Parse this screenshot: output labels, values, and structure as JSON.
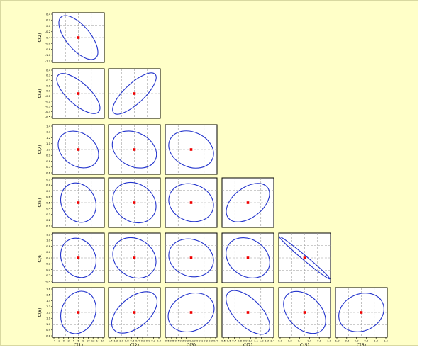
{
  "colors": {
    "background": "#ffffc8",
    "panel": "#ffffff",
    "ellipse": "#2233cc",
    "center": "#ee0000",
    "grid": "#9a9a9a",
    "frame": "#000000"
  },
  "chart_data": {
    "type": "scatter",
    "description_type": "pairwise confidence ellipse matrix (lower triangle)",
    "grid": true,
    "panels": [
      {
        "row": 0,
        "col": 0,
        "xlabel": "",
        "ylabel": "C(2)",
        "center": [
          0.5,
          0.5
        ],
        "rx": 0.54,
        "ry": 0.24,
        "angle": 50,
        "xticks": [],
        "yticks": [
          "0.4",
          "0.2",
          "0.0",
          "-0.2",
          "-0.4",
          "-0.6",
          "-0.8",
          "-1.0",
          "-1.2"
        ]
      },
      {
        "row": 1,
        "col": 0,
        "xlabel": "",
        "ylabel": "C(3)",
        "center": [
          0.5,
          0.5
        ],
        "rx": 0.55,
        "ry": 0.22,
        "angle": 42,
        "xticks": [],
        "yticks": [
          "0.4",
          "0.3",
          "0.2",
          "0.1",
          "0.0",
          "-0.1",
          "-0.2",
          "-0.3",
          "-0.4",
          "-0.5"
        ]
      },
      {
        "row": 1,
        "col": 1,
        "xlabel": "",
        "ylabel": "",
        "center": [
          0.5,
          0.5
        ],
        "rx": 0.57,
        "ry": 0.2,
        "angle": -43,
        "xticks": [],
        "yticks": []
      },
      {
        "row": 2,
        "col": 0,
        "xlabel": "",
        "ylabel": "C(7)",
        "center": [
          0.5,
          0.5
        ],
        "rx": 0.44,
        "ry": 0.33,
        "angle": 35,
        "xticks": [],
        "yticks": [
          "1.4",
          "1.3",
          "1.2",
          "1.1",
          "1.0",
          "0.9",
          "0.8",
          "0.7",
          "0.6"
        ]
      },
      {
        "row": 2,
        "col": 1,
        "xlabel": "",
        "ylabel": "",
        "center": [
          0.5,
          0.5
        ],
        "rx": 0.47,
        "ry": 0.34,
        "angle": 28,
        "xticks": [],
        "yticks": []
      },
      {
        "row": 2,
        "col": 2,
        "xlabel": "",
        "ylabel": "",
        "center": [
          0.5,
          0.5
        ],
        "rx": 0.47,
        "ry": 0.35,
        "angle": 25,
        "xticks": [],
        "yticks": []
      },
      {
        "row": 3,
        "col": 0,
        "xlabel": "",
        "ylabel": "C(5)",
        "center": [
          0.5,
          0.5
        ],
        "rx": 0.41,
        "ry": 0.34,
        "angle": 62,
        "xticks": [],
        "yticks": [
          "0.9",
          "0.8",
          "0.7",
          "0.6",
          "0.5",
          "0.4",
          "0.3",
          "0.2",
          "0.1"
        ]
      },
      {
        "row": 3,
        "col": 1,
        "xlabel": "",
        "ylabel": "",
        "center": [
          0.5,
          0.5
        ],
        "rx": 0.46,
        "ry": 0.38,
        "angle": 35,
        "xticks": [],
        "yticks": []
      },
      {
        "row": 3,
        "col": 2,
        "xlabel": "",
        "ylabel": "",
        "center": [
          0.5,
          0.5
        ],
        "rx": 0.46,
        "ry": 0.37,
        "angle": 20,
        "xticks": [],
        "yticks": []
      },
      {
        "row": 3,
        "col": 3,
        "xlabel": "",
        "ylabel": "",
        "center": [
          0.5,
          0.5
        ],
        "rx": 0.5,
        "ry": 0.3,
        "angle": -38,
        "xticks": [],
        "yticks": []
      },
      {
        "row": 4,
        "col": 0,
        "xlabel": "",
        "ylabel": "C(6)",
        "center": [
          0.5,
          0.5
        ],
        "rx": 0.41,
        "ry": 0.34,
        "angle": 62,
        "xticks": [],
        "yticks": [
          "1.2",
          "1.0",
          "0.8",
          "0.6",
          "0.4",
          "0.2",
          "0.0",
          "-0.2",
          "-0.4"
        ]
      },
      {
        "row": 4,
        "col": 1,
        "xlabel": "",
        "ylabel": "",
        "center": [
          0.5,
          0.5
        ],
        "rx": 0.46,
        "ry": 0.38,
        "angle": 35,
        "xticks": [],
        "yticks": []
      },
      {
        "row": 4,
        "col": 2,
        "xlabel": "",
        "ylabel": "",
        "center": [
          0.5,
          0.5
        ],
        "rx": 0.46,
        "ry": 0.37,
        "angle": 20,
        "xticks": [],
        "yticks": []
      },
      {
        "row": 4,
        "col": 3,
        "xlabel": "",
        "ylabel": "",
        "center": [
          0.5,
          0.5
        ],
        "rx": 0.47,
        "ry": 0.37,
        "angle": 35,
        "xticks": [],
        "yticks": []
      },
      {
        "row": 4,
        "col": 4,
        "xlabel": "",
        "ylabel": "",
        "center": [
          0.5,
          0.5
        ],
        "rx": 0.66,
        "ry": 0.045,
        "angle": 40,
        "xticks": [],
        "yticks": []
      },
      {
        "row": 5,
        "col": 0,
        "xlabel": "C(1)",
        "ylabel": "C(8)",
        "center": [
          0.5,
          0.5
        ],
        "rx": 0.44,
        "ry": 0.34,
        "angle": -68,
        "xticks": [
          "-4",
          "-2",
          "0",
          "2",
          "4",
          "6",
          "8",
          "10",
          "12",
          "14",
          "16"
        ],
        "yticks": [
          "1.6",
          "1.5",
          "1.4",
          "1.3",
          "1.2",
          "1.1",
          "1.0",
          "0.9",
          "0.8"
        ]
      },
      {
        "row": 5,
        "col": 1,
        "xlabel": "C(2)",
        "ylabel": "",
        "center": [
          0.5,
          0.5
        ],
        "rx": 0.54,
        "ry": 0.3,
        "angle": -40,
        "xticks": [
          "-1.4",
          "-1.2",
          "-1.0",
          "-0.8",
          "-0.6",
          "-0.4",
          "-0.2",
          "0.0",
          "0.2",
          "0.4"
        ],
        "yticks": []
      },
      {
        "row": 5,
        "col": 2,
        "xlabel": "C(3)",
        "ylabel": "",
        "center": [
          0.5,
          0.5
        ],
        "rx": 0.48,
        "ry": 0.37,
        "angle": -25,
        "xticks": [
          "-0.6",
          "-0.5",
          "-0.4",
          "-0.3",
          "-0.2",
          "-0.1",
          "0.0",
          "0.1",
          "0.2",
          "0.3",
          "0.4"
        ],
        "yticks": []
      },
      {
        "row": 5,
        "col": 3,
        "xlabel": "C(7)",
        "ylabel": "",
        "center": [
          0.5,
          0.5
        ],
        "rx": 0.56,
        "ry": 0.27,
        "angle": 45,
        "xticks": [
          "0.5",
          "0.6",
          "0.7",
          "0.8",
          "0.9",
          "1.0",
          "1.1",
          "1.2",
          "1.3",
          "1.4"
        ],
        "yticks": []
      },
      {
        "row": 5,
        "col": 4,
        "xlabel": "C(5)",
        "ylabel": "",
        "center": [
          0.5,
          0.5
        ],
        "rx": 0.5,
        "ry": 0.33,
        "angle": 45,
        "xticks": [
          "0.0",
          "0.2",
          "0.4",
          "0.6",
          "0.8",
          "1.0"
        ],
        "yticks": []
      },
      {
        "row": 5,
        "col": 5,
        "xlabel": "C(6)",
        "ylabel": "",
        "center": [
          0.5,
          0.5
        ],
        "rx": 0.47,
        "ry": 0.37,
        "angle": -25,
        "xticks": [
          "-1.0",
          "-0.5",
          "0.0",
          "0.5",
          "1.0",
          "1.5"
        ],
        "yticks": []
      }
    ]
  }
}
